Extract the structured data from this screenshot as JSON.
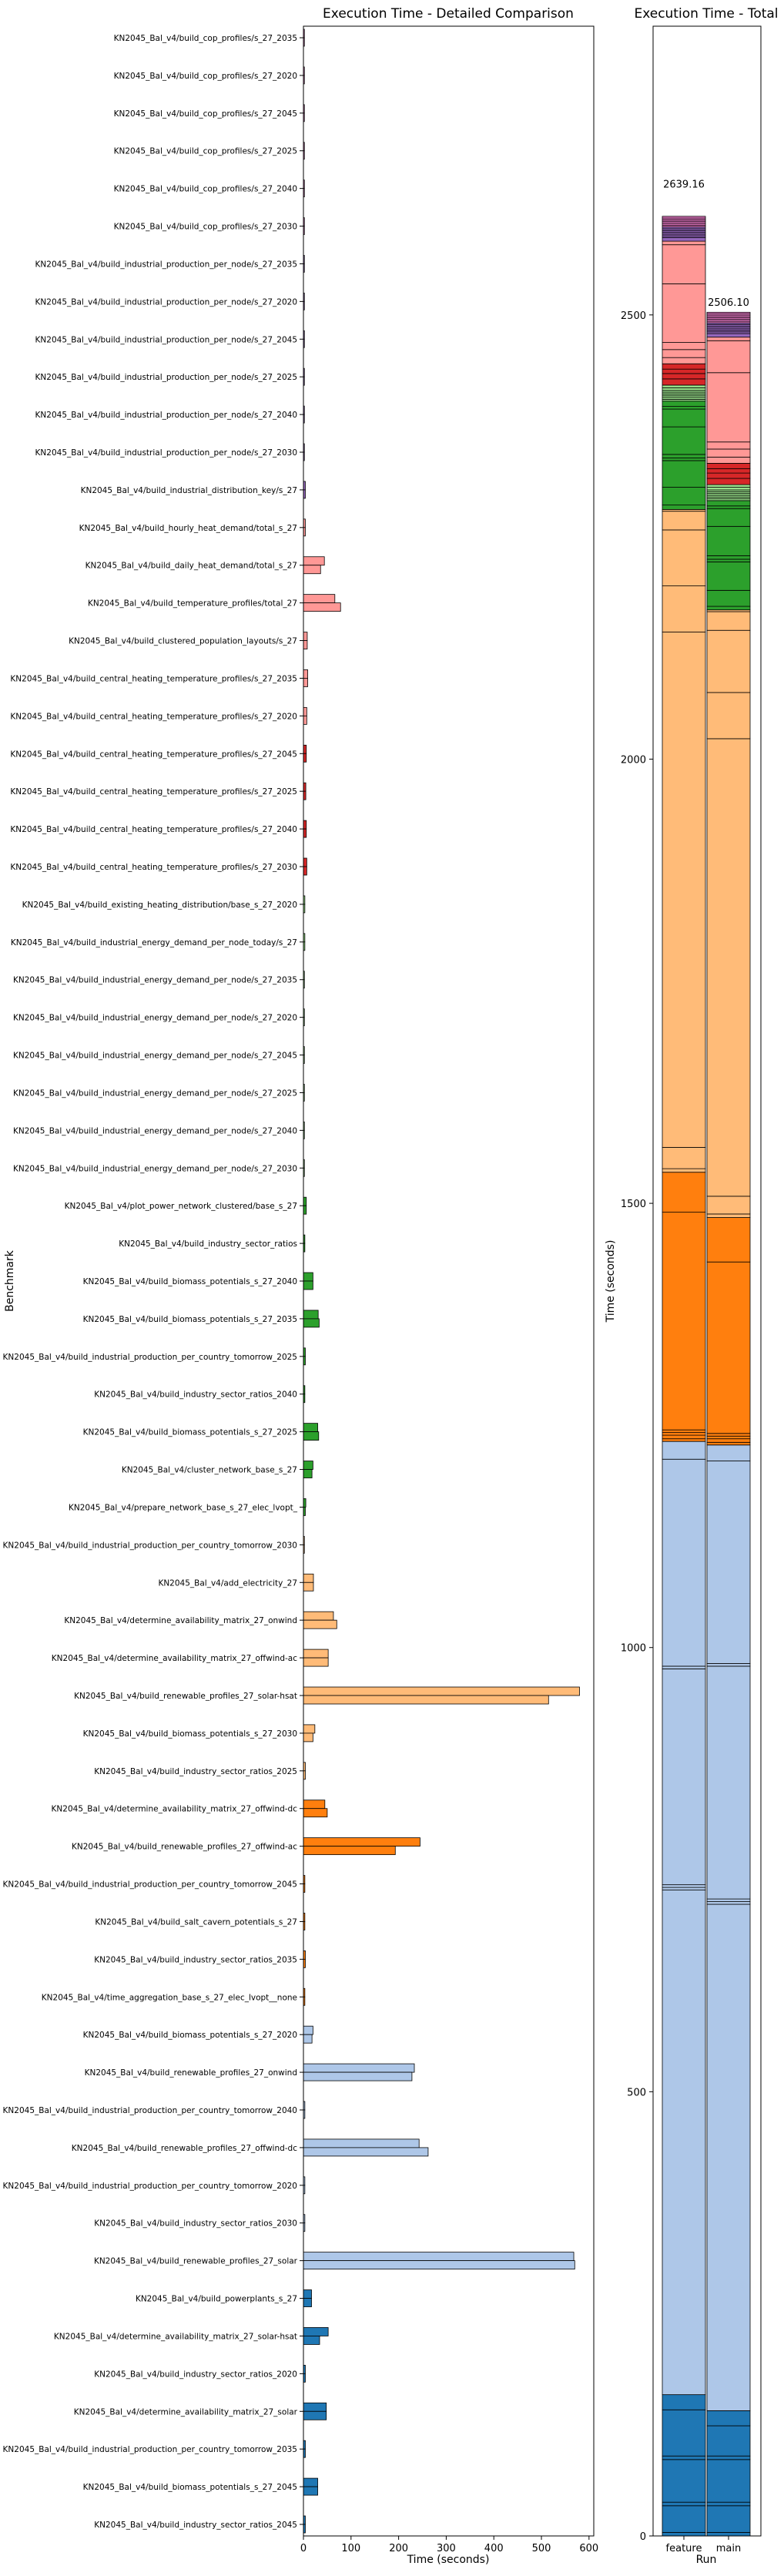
{
  "chart_data": [
    {
      "type": "bar",
      "orientation": "horizontal",
      "title": "Execution Time - Detailed Comparison",
      "xlabel": "Time (seconds)",
      "ylabel": "Benchmark",
      "xlim": [
        0,
        610
      ],
      "xticks": [
        0,
        100,
        200,
        300,
        400,
        500,
        600
      ],
      "series": [
        {
          "name": "feature"
        },
        {
          "name": "main"
        }
      ],
      "categories": [
        {
          "label": "KN2045_Bal_v4/build_cop_profiles/s_27_2035",
          "color": "#e377c2",
          "values": [
            2,
            2
          ]
        },
        {
          "label": "KN2045_Bal_v4/build_cop_profiles/s_27_2020",
          "color": "#e377c2",
          "values": [
            2,
            2
          ]
        },
        {
          "label": "KN2045_Bal_v4/build_cop_profiles/s_27_2045",
          "color": "#e377c2",
          "values": [
            2,
            2
          ]
        },
        {
          "label": "KN2045_Bal_v4/build_cop_profiles/s_27_2025",
          "color": "#e377c2",
          "values": [
            2,
            2
          ]
        },
        {
          "label": "KN2045_Bal_v4/build_cop_profiles/s_27_2040",
          "color": "#e377c2",
          "values": [
            2,
            2
          ]
        },
        {
          "label": "KN2045_Bal_v4/build_cop_profiles/s_27_2030",
          "color": "#e377c2",
          "values": [
            2,
            2
          ]
        },
        {
          "label": "KN2045_Bal_v4/build_industrial_production_per_node/s_27_2035",
          "color": "#9467bd",
          "values": [
            2,
            2
          ]
        },
        {
          "label": "KN2045_Bal_v4/build_industrial_production_per_node/s_27_2020",
          "color": "#9467bd",
          "values": [
            2,
            2
          ]
        },
        {
          "label": "KN2045_Bal_v4/build_industrial_production_per_node/s_27_2045",
          "color": "#9467bd",
          "values": [
            2,
            2
          ]
        },
        {
          "label": "KN2045_Bal_v4/build_industrial_production_per_node/s_27_2025",
          "color": "#9467bd",
          "values": [
            2,
            2
          ]
        },
        {
          "label": "KN2045_Bal_v4/build_industrial_production_per_node/s_27_2040",
          "color": "#9467bd",
          "values": [
            2,
            2
          ]
        },
        {
          "label": "KN2045_Bal_v4/build_industrial_production_per_node/s_27_2030",
          "color": "#9467bd",
          "values": [
            2,
            2
          ]
        },
        {
          "label": "KN2045_Bal_v4/build_industrial_distribution_key/s_27",
          "color": "#9467bd",
          "values": [
            4,
            4
          ]
        },
        {
          "label": "KN2045_Bal_v4/build_hourly_heat_demand/total_s_27",
          "color": "#ff9896",
          "values": [
            4,
            4
          ]
        },
        {
          "label": "KN2045_Bal_v4/build_daily_heat_demand/total_s_27",
          "color": "#ff9896",
          "values": [
            44,
            36
          ]
        },
        {
          "label": "KN2045_Bal_v4/build_temperature_profiles/total_27",
          "color": "#ff9896",
          "values": [
            66,
            78
          ]
        },
        {
          "label": "KN2045_Bal_v4/build_clustered_population_layouts/s_27",
          "color": "#ff9896",
          "values": [
            8,
            8
          ]
        },
        {
          "label": "KN2045_Bal_v4/build_central_heating_temperature_profiles/s_27_2035",
          "color": "#ff9896",
          "values": [
            9,
            9
          ]
        },
        {
          "label": "KN2045_Bal_v4/build_central_heating_temperature_profiles/s_27_2020",
          "color": "#ff9896",
          "values": [
            7,
            7
          ]
        },
        {
          "label": "KN2045_Bal_v4/build_central_heating_temperature_profiles/s_27_2045",
          "color": "#d62728",
          "values": [
            6,
            6
          ]
        },
        {
          "label": "KN2045_Bal_v4/build_central_heating_temperature_profiles/s_27_2025",
          "color": "#d62728",
          "values": [
            5,
            5
          ]
        },
        {
          "label": "KN2045_Bal_v4/build_central_heating_temperature_profiles/s_27_2040",
          "color": "#d62728",
          "values": [
            6,
            6
          ]
        },
        {
          "label": "KN2045_Bal_v4/build_central_heating_temperature_profiles/s_27_2030",
          "color": "#d62728",
          "values": [
            7,
            7
          ]
        },
        {
          "label": "KN2045_Bal_v4/build_existing_heating_distribution/base_s_27_2020",
          "color": "#98df8a",
          "values": [
            3,
            3
          ]
        },
        {
          "label": "KN2045_Bal_v4/build_industrial_energy_demand_per_node_today/s_27",
          "color": "#98df8a",
          "values": [
            3,
            3
          ]
        },
        {
          "label": "KN2045_Bal_v4/build_industrial_energy_demand_per_node/s_27_2035",
          "color": "#98df8a",
          "values": [
            2,
            2
          ]
        },
        {
          "label": "KN2045_Bal_v4/build_industrial_energy_demand_per_node/s_27_2020",
          "color": "#98df8a",
          "values": [
            2,
            2
          ]
        },
        {
          "label": "KN2045_Bal_v4/build_industrial_energy_demand_per_node/s_27_2045",
          "color": "#98df8a",
          "values": [
            2,
            2
          ]
        },
        {
          "label": "KN2045_Bal_v4/build_industrial_energy_demand_per_node/s_27_2025",
          "color": "#98df8a",
          "values": [
            2,
            2
          ]
        },
        {
          "label": "KN2045_Bal_v4/build_industrial_energy_demand_per_node/s_27_2040",
          "color": "#98df8a",
          "values": [
            2,
            2
          ]
        },
        {
          "label": "KN2045_Bal_v4/build_industrial_energy_demand_per_node/s_27_2030",
          "color": "#98df8a",
          "values": [
            2,
            2
          ]
        },
        {
          "label": "KN2045_Bal_v4/plot_power_network_clustered/base_s_27",
          "color": "#2ca02c",
          "values": [
            6,
            6
          ]
        },
        {
          "label": "KN2045_Bal_v4/build_industry_sector_ratios",
          "color": "#2ca02c",
          "values": [
            3,
            3
          ]
        },
        {
          "label": "KN2045_Bal_v4/build_biomass_potentials_s_27_2040",
          "color": "#2ca02c",
          "values": [
            20,
            20
          ]
        },
        {
          "label": "KN2045_Bal_v4/build_biomass_potentials_s_27_2035",
          "color": "#2ca02c",
          "values": [
            31,
            33
          ]
        },
        {
          "label": "KN2045_Bal_v4/build_industrial_production_per_country_tomorrow_2025",
          "color": "#2ca02c",
          "values": [
            4,
            4
          ]
        },
        {
          "label": "KN2045_Bal_v4/build_industry_sector_ratios_2040",
          "color": "#2ca02c",
          "values": [
            3,
            3
          ]
        },
        {
          "label": "KN2045_Bal_v4/build_biomass_potentials_s_27_2025",
          "color": "#2ca02c",
          "values": [
            30,
            32
          ]
        },
        {
          "label": "KN2045_Bal_v4/cluster_network_base_s_27",
          "color": "#2ca02c",
          "values": [
            20,
            18
          ]
        },
        {
          "label": "KN2045_Bal_v4/prepare_network_base_s_27_elec_lvopt_",
          "color": "#2ca02c",
          "values": [
            5,
            4
          ]
        },
        {
          "label": "KN2045_Bal_v4/build_industrial_production_per_country_tomorrow_2030",
          "color": "#ffbb78",
          "values": [
            2,
            2
          ]
        },
        {
          "label": "KN2045_Bal_v4/add_electricity_27",
          "color": "#ffbb78",
          "values": [
            21,
            21
          ]
        },
        {
          "label": "KN2045_Bal_v4/determine_availability_matrix_27_onwind",
          "color": "#ffbb78",
          "values": [
            63,
            70
          ]
        },
        {
          "label": "KN2045_Bal_v4/determine_availability_matrix_27_offwind-ac",
          "color": "#ffbb78",
          "values": [
            52,
            52
          ]
        },
        {
          "label": "KN2045_Bal_v4/build_renewable_profiles_27_solar-hsat",
          "color": "#ffbb78",
          "values": [
            580,
            515
          ]
        },
        {
          "label": "KN2045_Bal_v4/build_biomass_potentials_s_27_2030",
          "color": "#ffbb78",
          "values": [
            24,
            20
          ]
        },
        {
          "label": "KN2045_Bal_v4/build_industry_sector_ratios_2025",
          "color": "#ffbb78",
          "values": [
            4,
            4
          ]
        },
        {
          "label": "KN2045_Bal_v4/determine_availability_matrix_27_offwind-dc",
          "color": "#ff7f0e",
          "values": [
            45,
            50
          ]
        },
        {
          "label": "KN2045_Bal_v4/build_renewable_profiles_27_offwind-ac",
          "color": "#ff7f0e",
          "values": [
            245,
            193
          ]
        },
        {
          "label": "KN2045_Bal_v4/build_industrial_production_per_country_tomorrow_2045",
          "color": "#ff7f0e",
          "values": [
            3,
            3
          ]
        },
        {
          "label": "KN2045_Bal_v4/build_salt_cavern_potentials_s_27",
          "color": "#ff7f0e",
          "values": [
            3,
            3
          ]
        },
        {
          "label": "KN2045_Bal_v4/build_industry_sector_ratios_2035",
          "color": "#ff7f0e",
          "values": [
            4,
            4
          ]
        },
        {
          "label": "KN2045_Bal_v4/time_aggregation_base_s_27_elec_lvopt__none",
          "color": "#ff7f0e",
          "values": [
            3,
            3
          ]
        },
        {
          "label": "KN2045_Bal_v4/build_biomass_potentials_s_27_2020",
          "color": "#aec7e8",
          "values": [
            20,
            18
          ]
        },
        {
          "label": "KN2045_Bal_v4/build_renewable_profiles_27_onwind",
          "color": "#aec7e8",
          "values": [
            233,
            228
          ]
        },
        {
          "label": "KN2045_Bal_v4/build_industrial_production_per_country_tomorrow_2040",
          "color": "#aec7e8",
          "values": [
            3,
            3
          ]
        },
        {
          "label": "KN2045_Bal_v4/build_renewable_profiles_27_offwind-dc",
          "color": "#aec7e8",
          "values": [
            243,
            262
          ]
        },
        {
          "label": "KN2045_Bal_v4/build_industrial_production_per_country_tomorrow_2020",
          "color": "#aec7e8",
          "values": [
            3,
            3
          ]
        },
        {
          "label": "KN2045_Bal_v4/build_industry_sector_ratios_2030",
          "color": "#aec7e8",
          "values": [
            3,
            3
          ]
        },
        {
          "label": "KN2045_Bal_v4/build_renewable_profiles_27_solar",
          "color": "#aec7e8",
          "values": [
            568,
            570
          ]
        },
        {
          "label": "KN2045_Bal_v4/build_powerplants_s_27",
          "color": "#1f77b4",
          "values": [
            17,
            17
          ]
        },
        {
          "label": "KN2045_Bal_v4/determine_availability_matrix_27_solar-hsat",
          "color": "#1f77b4",
          "values": [
            52,
            34
          ]
        },
        {
          "label": "KN2045_Bal_v4/build_industry_sector_ratios_2020",
          "color": "#1f77b4",
          "values": [
            4,
            4
          ]
        },
        {
          "label": "KN2045_Bal_v4/determine_availability_matrix_27_solar",
          "color": "#1f77b4",
          "values": [
            48,
            48
          ]
        },
        {
          "label": "KN2045_Bal_v4/build_industrial_production_per_country_tomorrow_2035",
          "color": "#1f77b4",
          "values": [
            4,
            4
          ]
        },
        {
          "label": "KN2045_Bal_v4/build_biomass_potentials_s_27_2045",
          "color": "#1f77b4",
          "values": [
            30,
            30
          ]
        },
        {
          "label": "KN2045_Bal_v4/build_industry_sector_ratios_2045",
          "color": "#1f77b4",
          "values": [
            4,
            4
          ]
        }
      ]
    },
    {
      "type": "stacked_bar",
      "title": "Execution Time - Total",
      "xlabel": "Run",
      "ylabel": "Time (seconds)",
      "ylim": [
        0,
        2825
      ],
      "yticks": [
        0,
        500,
        1000,
        1500,
        2000,
        2500
      ],
      "categories": [
        "feature",
        "main"
      ],
      "totals": [
        2639.16,
        2506.1
      ],
      "total_labels": [
        "2639.16",
        "2506.10"
      ],
      "stack_order": "bottom-to-top follows the reverse of the detailed benchmark list"
    }
  ]
}
